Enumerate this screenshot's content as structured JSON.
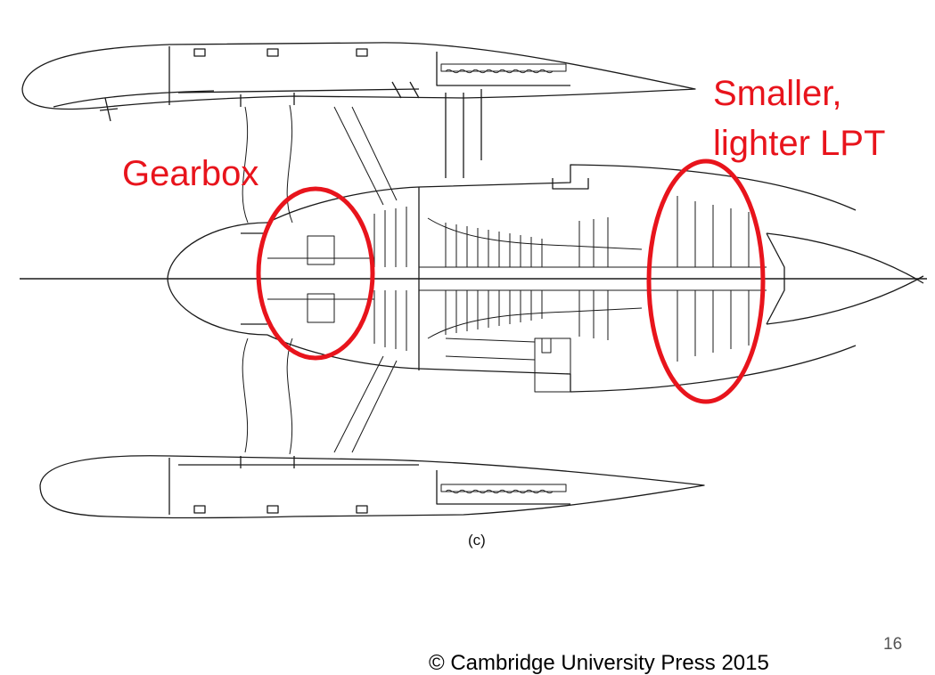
{
  "figure": {
    "caption": "(c)",
    "annotations": {
      "gearbox": "Gearbox",
      "lpt_line1": "Smaller,",
      "lpt_line2": "lighter LPT"
    },
    "highlight_color": "#e8141c"
  },
  "footer": {
    "page_number": "16",
    "copyright": "© Cambridge University Press 2015"
  }
}
